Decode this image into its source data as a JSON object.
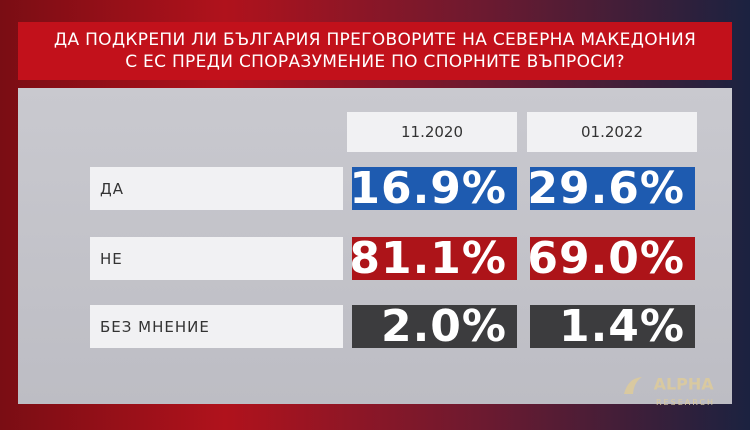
{
  "title": {
    "lines": [
      "ДА ПОДКРЕПИ ЛИ БЪЛГАРИЯ ПРЕГОВОРИТЕ НА СЕВЕРНА МАКЕДОНИЯ",
      "С ЕС ПРЕДИ СПОРАЗУМЕНИЕ ПО СПОРНИТЕ ВЪПРОСИ?"
    ]
  },
  "table": {
    "columns": [
      "11.2020",
      "01.2022"
    ],
    "rows": [
      {
        "label": "ДА",
        "values": [
          "16.9%",
          "29.6%"
        ]
      },
      {
        "label": "НЕ",
        "values": [
          "81.1%",
          "69.0%"
        ]
      },
      {
        "label": "БЕЗ МНЕНИЕ",
        "values": [
          "2.0%",
          "1.4%"
        ]
      }
    ]
  },
  "logo": {
    "name": "ALPHA",
    "subtitle": "RESEARCH"
  }
}
